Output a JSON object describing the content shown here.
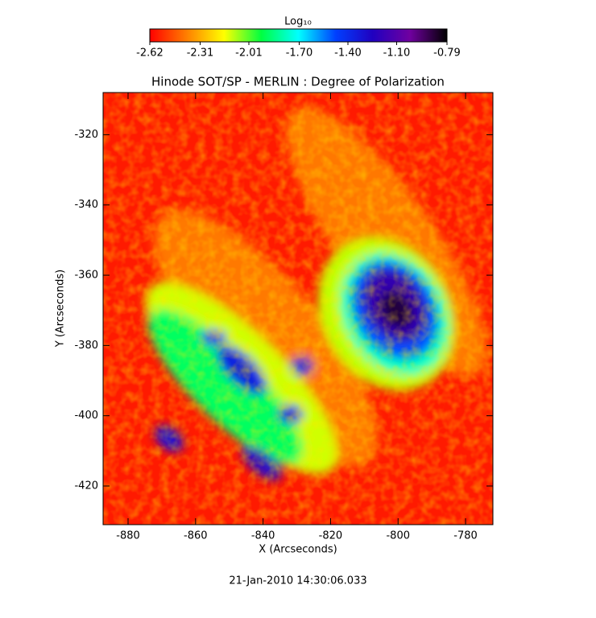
{
  "chart_data": {
    "type": "heatmap",
    "title": "Hinode SOT/SP - MERLIN : Degree of Polarization",
    "xlabel": "X (Arcseconds)",
    "ylabel": "Y (Arcseconds)",
    "xlim": [
      -887.4,
      -771.9
    ],
    "xticks": [
      -880,
      -860,
      -840,
      -820,
      -800,
      -780
    ],
    "ylim": [
      -431,
      -308
    ],
    "yticks": [
      -420,
      -400,
      -380,
      -360,
      -340,
      -320
    ],
    "colorbar": {
      "label": "Log₁₀",
      "lim": [
        -2.62,
        -0.79
      ],
      "ticks": [
        -2.62,
        {
          "value": -2.31,
          "label": "-2.31"
        },
        {
          "value": -2.01,
          "label": "-2.01"
        },
        {
          "value": -1.7,
          "label": "-1.70"
        },
        {
          "value": -1.4,
          "label": "-1.40"
        },
        {
          "value": -1.1,
          "label": "-1.10"
        },
        -0.79
      ],
      "colormap": [
        "#ff0000",
        "#ff8000",
        "#ffff00",
        "#00ff40",
        "#00ffff",
        "#0040ff",
        "#2000c0",
        "#7000a0",
        "#000000"
      ]
    },
    "footnote": "21-Jan-2010 14:30:06.033"
  }
}
